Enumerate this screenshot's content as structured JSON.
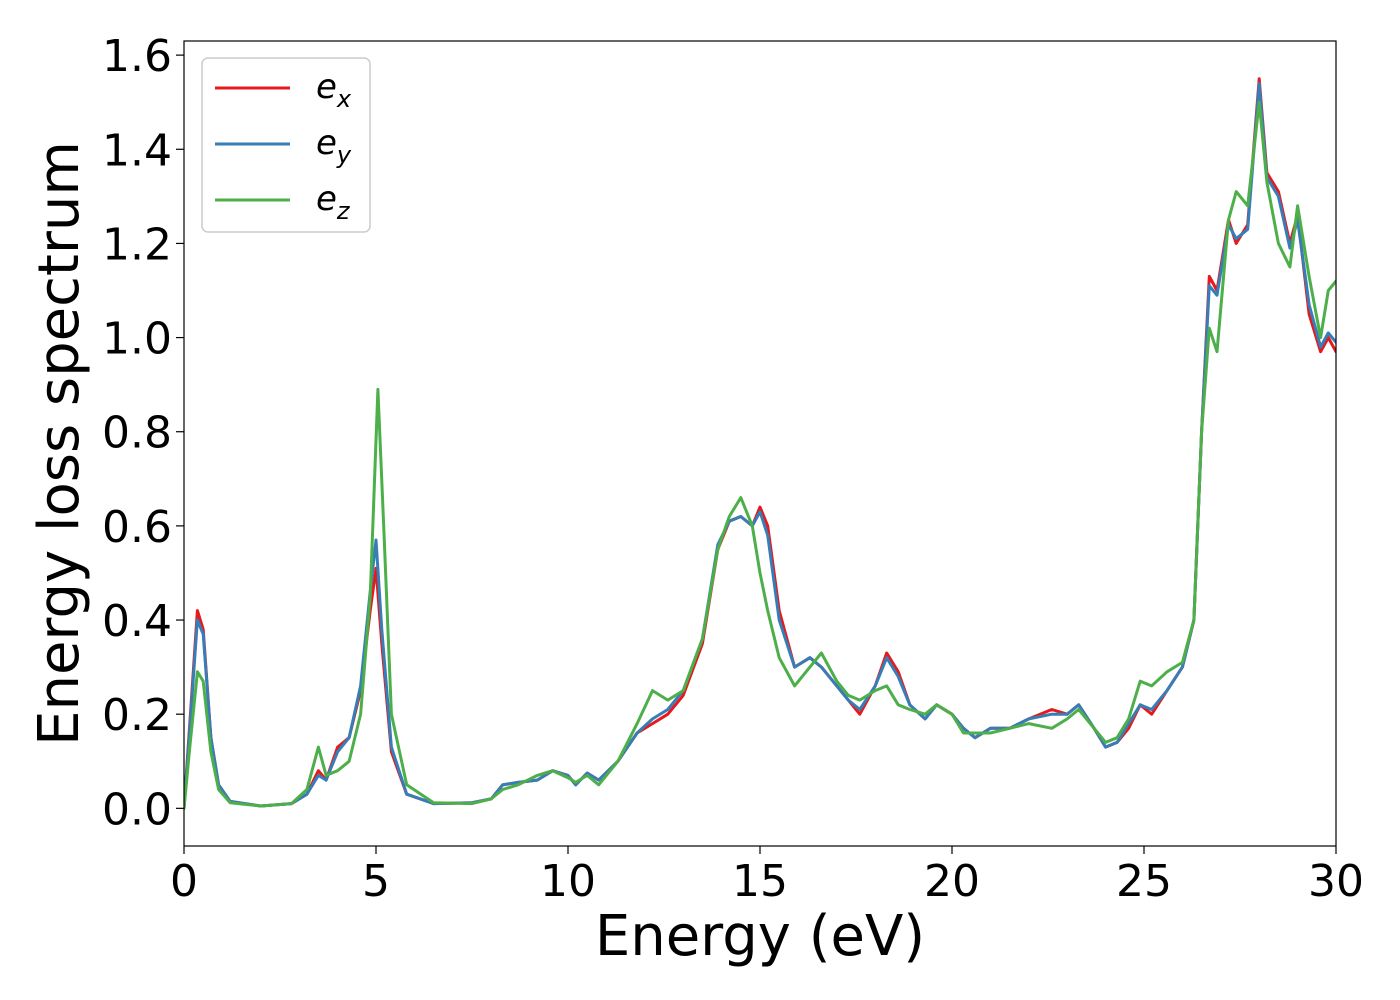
{
  "chart_data": {
    "type": "line",
    "xlabel": "Energy (eV)",
    "ylabel": "Energy loss spectrum",
    "xlim": [
      0,
      30
    ],
    "ylim": [
      -0.08,
      1.63
    ],
    "xticks": [
      0,
      5,
      10,
      15,
      20,
      25,
      30
    ],
    "xtick_labels": [
      "0",
      "5",
      "10",
      "15",
      "20",
      "25",
      "30"
    ],
    "yticks": [
      0.0,
      0.2,
      0.4,
      0.6,
      0.8,
      1.0,
      1.2,
      1.4,
      1.6
    ],
    "ytick_labels": [
      "0.0",
      "0.2",
      "0.4",
      "0.6",
      "0.8",
      "1.0",
      "1.2",
      "1.4",
      "1.6"
    ],
    "grid": false,
    "legend_position": "upper-left",
    "series": [
      {
        "name": "e_x",
        "label_main": "e",
        "label_sub": "x",
        "color": "#e41a1c",
        "points": [
          [
            0,
            0.0
          ],
          [
            0.15,
            0.18
          ],
          [
            0.35,
            0.42
          ],
          [
            0.5,
            0.38
          ],
          [
            0.7,
            0.15
          ],
          [
            0.9,
            0.05
          ],
          [
            1.2,
            0.015
          ],
          [
            2.0,
            0.005
          ],
          [
            2.8,
            0.01
          ],
          [
            3.2,
            0.03
          ],
          [
            3.5,
            0.08
          ],
          [
            3.7,
            0.06
          ],
          [
            4.0,
            0.13
          ],
          [
            4.3,
            0.15
          ],
          [
            4.6,
            0.25
          ],
          [
            4.85,
            0.42
          ],
          [
            5.0,
            0.51
          ],
          [
            5.15,
            0.35
          ],
          [
            5.4,
            0.12
          ],
          [
            5.8,
            0.03
          ],
          [
            6.5,
            0.01
          ],
          [
            7.5,
            0.012
          ],
          [
            8.0,
            0.02
          ],
          [
            8.3,
            0.05
          ],
          [
            8.7,
            0.055
          ],
          [
            9.2,
            0.06
          ],
          [
            9.6,
            0.08
          ],
          [
            10.0,
            0.07
          ],
          [
            10.2,
            0.05
          ],
          [
            10.5,
            0.075
          ],
          [
            10.8,
            0.06
          ],
          [
            11.3,
            0.1
          ],
          [
            11.8,
            0.16
          ],
          [
            12.2,
            0.18
          ],
          [
            12.6,
            0.2
          ],
          [
            13.0,
            0.24
          ],
          [
            13.5,
            0.35
          ],
          [
            13.9,
            0.55
          ],
          [
            14.2,
            0.61
          ],
          [
            14.5,
            0.62
          ],
          [
            14.8,
            0.6
          ],
          [
            15.0,
            0.64
          ],
          [
            15.2,
            0.6
          ],
          [
            15.5,
            0.42
          ],
          [
            15.9,
            0.3
          ],
          [
            16.3,
            0.32
          ],
          [
            16.6,
            0.3
          ],
          [
            17.0,
            0.26
          ],
          [
            17.3,
            0.23
          ],
          [
            17.6,
            0.2
          ],
          [
            18.0,
            0.26
          ],
          [
            18.3,
            0.33
          ],
          [
            18.6,
            0.29
          ],
          [
            18.9,
            0.22
          ],
          [
            19.3,
            0.19
          ],
          [
            19.6,
            0.22
          ],
          [
            20.0,
            0.2
          ],
          [
            20.3,
            0.17
          ],
          [
            20.6,
            0.15
          ],
          [
            21.0,
            0.17
          ],
          [
            21.5,
            0.17
          ],
          [
            22.0,
            0.19
          ],
          [
            22.6,
            0.21
          ],
          [
            23.0,
            0.2
          ],
          [
            23.3,
            0.22
          ],
          [
            23.7,
            0.17
          ],
          [
            24.0,
            0.13
          ],
          [
            24.3,
            0.14
          ],
          [
            24.6,
            0.17
          ],
          [
            24.9,
            0.22
          ],
          [
            25.2,
            0.2
          ],
          [
            25.6,
            0.25
          ],
          [
            26.0,
            0.3
          ],
          [
            26.3,
            0.4
          ],
          [
            26.5,
            0.8
          ],
          [
            26.7,
            1.13
          ],
          [
            26.9,
            1.1
          ],
          [
            27.2,
            1.25
          ],
          [
            27.4,
            1.2
          ],
          [
            27.7,
            1.24
          ],
          [
            28.0,
            1.55
          ],
          [
            28.2,
            1.35
          ],
          [
            28.5,
            1.31
          ],
          [
            28.8,
            1.2
          ],
          [
            29.0,
            1.26
          ],
          [
            29.3,
            1.05
          ],
          [
            29.6,
            0.97
          ],
          [
            29.8,
            1.0
          ],
          [
            30.0,
            0.97
          ]
        ]
      },
      {
        "name": "e_y",
        "label_main": "e",
        "label_sub": "y",
        "color": "#377eb8",
        "points": [
          [
            0,
            0.0
          ],
          [
            0.15,
            0.17
          ],
          [
            0.35,
            0.4
          ],
          [
            0.5,
            0.37
          ],
          [
            0.7,
            0.15
          ],
          [
            0.9,
            0.05
          ],
          [
            1.2,
            0.015
          ],
          [
            2.0,
            0.005
          ],
          [
            2.8,
            0.01
          ],
          [
            3.2,
            0.03
          ],
          [
            3.5,
            0.07
          ],
          [
            3.7,
            0.06
          ],
          [
            4.0,
            0.12
          ],
          [
            4.3,
            0.15
          ],
          [
            4.6,
            0.26
          ],
          [
            4.85,
            0.46
          ],
          [
            5.0,
            0.57
          ],
          [
            5.15,
            0.38
          ],
          [
            5.4,
            0.13
          ],
          [
            5.8,
            0.03
          ],
          [
            6.5,
            0.01
          ],
          [
            7.5,
            0.012
          ],
          [
            8.0,
            0.02
          ],
          [
            8.3,
            0.05
          ],
          [
            8.7,
            0.055
          ],
          [
            9.2,
            0.06
          ],
          [
            9.6,
            0.08
          ],
          [
            10.0,
            0.07
          ],
          [
            10.2,
            0.05
          ],
          [
            10.5,
            0.075
          ],
          [
            10.8,
            0.06
          ],
          [
            11.3,
            0.1
          ],
          [
            11.8,
            0.16
          ],
          [
            12.2,
            0.19
          ],
          [
            12.6,
            0.21
          ],
          [
            13.0,
            0.25
          ],
          [
            13.5,
            0.36
          ],
          [
            13.9,
            0.56
          ],
          [
            14.2,
            0.61
          ],
          [
            14.5,
            0.62
          ],
          [
            14.8,
            0.6
          ],
          [
            15.0,
            0.63
          ],
          [
            15.2,
            0.58
          ],
          [
            15.5,
            0.4
          ],
          [
            15.9,
            0.3
          ],
          [
            16.3,
            0.32
          ],
          [
            16.6,
            0.3
          ],
          [
            17.0,
            0.26
          ],
          [
            17.3,
            0.23
          ],
          [
            17.6,
            0.21
          ],
          [
            18.0,
            0.26
          ],
          [
            18.3,
            0.32
          ],
          [
            18.6,
            0.28
          ],
          [
            18.9,
            0.22
          ],
          [
            19.3,
            0.19
          ],
          [
            19.6,
            0.22
          ],
          [
            20.0,
            0.2
          ],
          [
            20.3,
            0.17
          ],
          [
            20.6,
            0.15
          ],
          [
            21.0,
            0.17
          ],
          [
            21.5,
            0.17
          ],
          [
            22.0,
            0.19
          ],
          [
            22.6,
            0.2
          ],
          [
            23.0,
            0.2
          ],
          [
            23.3,
            0.22
          ],
          [
            23.7,
            0.17
          ],
          [
            24.0,
            0.13
          ],
          [
            24.3,
            0.14
          ],
          [
            24.6,
            0.18
          ],
          [
            24.9,
            0.22
          ],
          [
            25.2,
            0.21
          ],
          [
            25.6,
            0.25
          ],
          [
            26.0,
            0.3
          ],
          [
            26.3,
            0.4
          ],
          [
            26.5,
            0.8
          ],
          [
            26.7,
            1.11
          ],
          [
            26.9,
            1.09
          ],
          [
            27.2,
            1.24
          ],
          [
            27.4,
            1.21
          ],
          [
            27.7,
            1.23
          ],
          [
            28.0,
            1.54
          ],
          [
            28.2,
            1.34
          ],
          [
            28.5,
            1.3
          ],
          [
            28.8,
            1.19
          ],
          [
            29.0,
            1.25
          ],
          [
            29.3,
            1.07
          ],
          [
            29.6,
            0.98
          ],
          [
            29.8,
            1.01
          ],
          [
            30.0,
            0.99
          ]
        ]
      },
      {
        "name": "e_z",
        "label_main": "e",
        "label_sub": "z",
        "color": "#4daf4a",
        "points": [
          [
            0,
            0.0
          ],
          [
            0.15,
            0.13
          ],
          [
            0.35,
            0.29
          ],
          [
            0.5,
            0.27
          ],
          [
            0.7,
            0.12
          ],
          [
            0.9,
            0.04
          ],
          [
            1.2,
            0.012
          ],
          [
            2.0,
            0.005
          ],
          [
            2.8,
            0.01
          ],
          [
            3.2,
            0.04
          ],
          [
            3.5,
            0.13
          ],
          [
            3.7,
            0.07
          ],
          [
            4.0,
            0.08
          ],
          [
            4.3,
            0.1
          ],
          [
            4.6,
            0.2
          ],
          [
            4.85,
            0.45
          ],
          [
            5.05,
            0.89
          ],
          [
            5.2,
            0.6
          ],
          [
            5.4,
            0.2
          ],
          [
            5.8,
            0.05
          ],
          [
            6.5,
            0.012
          ],
          [
            7.5,
            0.01
          ],
          [
            8.0,
            0.02
          ],
          [
            8.3,
            0.04
          ],
          [
            8.7,
            0.05
          ],
          [
            9.2,
            0.07
          ],
          [
            9.6,
            0.08
          ],
          [
            10.0,
            0.065
          ],
          [
            10.2,
            0.055
          ],
          [
            10.5,
            0.07
          ],
          [
            10.8,
            0.05
          ],
          [
            11.3,
            0.1
          ],
          [
            11.8,
            0.18
          ],
          [
            12.2,
            0.25
          ],
          [
            12.6,
            0.23
          ],
          [
            13.0,
            0.25
          ],
          [
            13.5,
            0.36
          ],
          [
            13.9,
            0.55
          ],
          [
            14.2,
            0.62
          ],
          [
            14.5,
            0.66
          ],
          [
            14.8,
            0.6
          ],
          [
            15.0,
            0.5
          ],
          [
            15.2,
            0.42
          ],
          [
            15.5,
            0.32
          ],
          [
            15.9,
            0.26
          ],
          [
            16.3,
            0.3
          ],
          [
            16.6,
            0.33
          ],
          [
            17.0,
            0.27
          ],
          [
            17.3,
            0.24
          ],
          [
            17.6,
            0.23
          ],
          [
            18.0,
            0.25
          ],
          [
            18.3,
            0.26
          ],
          [
            18.6,
            0.22
          ],
          [
            18.9,
            0.21
          ],
          [
            19.3,
            0.2
          ],
          [
            19.6,
            0.22
          ],
          [
            20.0,
            0.2
          ],
          [
            20.3,
            0.16
          ],
          [
            20.6,
            0.16
          ],
          [
            21.0,
            0.16
          ],
          [
            21.5,
            0.17
          ],
          [
            22.0,
            0.18
          ],
          [
            22.6,
            0.17
          ],
          [
            23.0,
            0.19
          ],
          [
            23.3,
            0.21
          ],
          [
            23.7,
            0.17
          ],
          [
            24.0,
            0.14
          ],
          [
            24.3,
            0.15
          ],
          [
            24.6,
            0.19
          ],
          [
            24.9,
            0.27
          ],
          [
            25.2,
            0.26
          ],
          [
            25.6,
            0.29
          ],
          [
            26.0,
            0.31
          ],
          [
            26.3,
            0.4
          ],
          [
            26.5,
            0.8
          ],
          [
            26.7,
            1.02
          ],
          [
            26.9,
            0.97
          ],
          [
            27.2,
            1.25
          ],
          [
            27.4,
            1.31
          ],
          [
            27.7,
            1.28
          ],
          [
            28.0,
            1.5
          ],
          [
            28.2,
            1.33
          ],
          [
            28.5,
            1.2
          ],
          [
            28.8,
            1.15
          ],
          [
            29.0,
            1.28
          ],
          [
            29.3,
            1.13
          ],
          [
            29.6,
            1.0
          ],
          [
            29.8,
            1.1
          ],
          [
            30.0,
            1.12
          ]
        ]
      }
    ]
  }
}
